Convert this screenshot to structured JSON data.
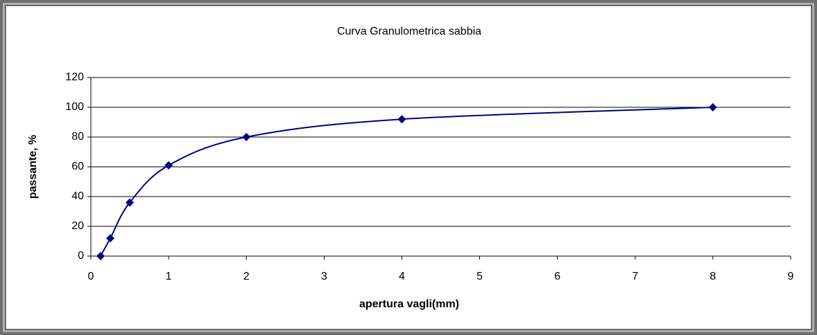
{
  "chart_data": {
    "type": "scatter",
    "title": "Curva Granulometrica sabbia",
    "xlabel": "apertura vagli(mm)",
    "ylabel": "passante, %",
    "series": [
      {
        "name": "passante",
        "color": "#000080",
        "x": [
          0.125,
          0.25,
          0.5,
          1,
          2,
          4,
          8
        ],
        "values": [
          0,
          12,
          36,
          61,
          80,
          92,
          100
        ]
      }
    ],
    "smooth": true,
    "xlim": [
      0,
      9
    ],
    "xticks": [
      0,
      1,
      2,
      3,
      4,
      5,
      6,
      7,
      8,
      9
    ],
    "ylim": [
      0,
      120
    ],
    "yticks": [
      0,
      20,
      40,
      60,
      80,
      100,
      120
    ],
    "grid": true
  }
}
